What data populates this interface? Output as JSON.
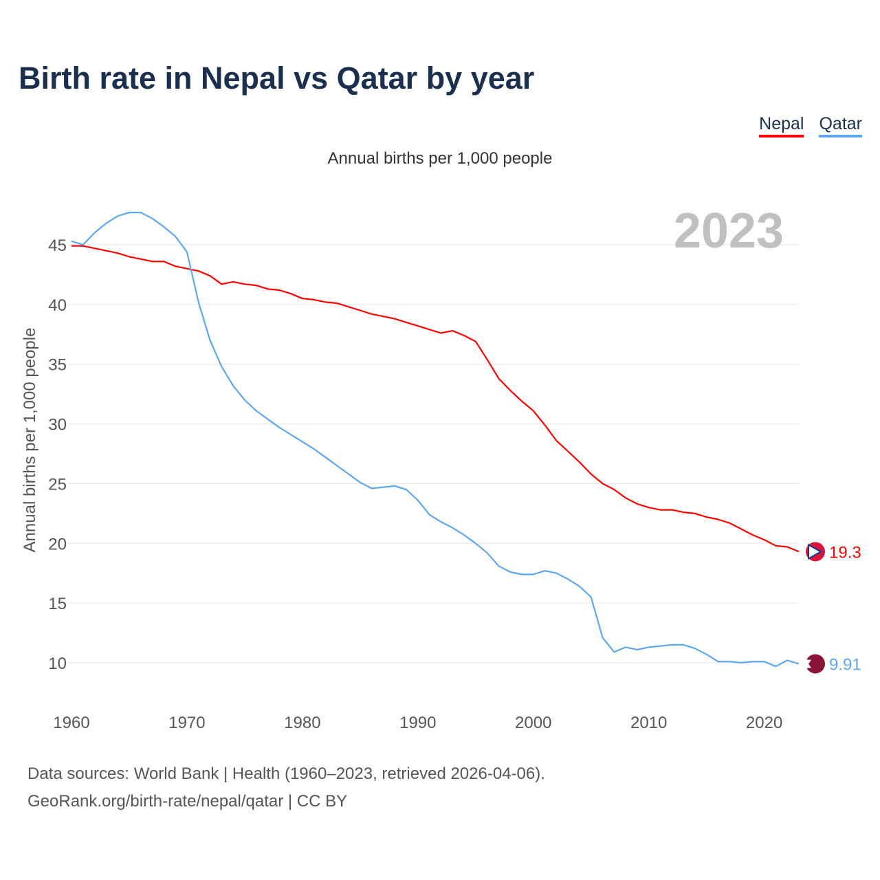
{
  "title": "Birth rate in Nepal vs Qatar by year",
  "subtitle": "Annual births per 1,000 people",
  "legend": [
    "Nepal",
    "Qatar"
  ],
  "year_label": "2023",
  "footer": {
    "line1": "Data sources: World Bank | Health (1960–2023, retrieved 2026-04-06).",
    "line2": "GeoRank.org/birth-rate/nepal/qatar | CC BY"
  },
  "chart_data": {
    "type": "line",
    "title": "Birth rate in Nepal vs Qatar by year",
    "xlabel": "",
    "ylabel": "Annual births per 1,000 people",
    "xlim": [
      1960,
      2023
    ],
    "ylim": [
      7,
      48
    ],
    "xticks": [
      1960,
      1970,
      1980,
      1990,
      2000,
      2010,
      2020
    ],
    "yticks": [
      10,
      15,
      20,
      25,
      30,
      35,
      40,
      45
    ],
    "grid": true,
    "legend_position": "top-right",
    "x_start": 1960,
    "series": [
      {
        "name": "Nepal",
        "color": "#ff0000",
        "end_label": "19.3",
        "values": [
          44.9,
          44.9,
          44.7,
          44.5,
          44.3,
          44.0,
          43.8,
          43.6,
          43.6,
          43.2,
          43.0,
          42.8,
          42.4,
          41.7,
          41.9,
          41.7,
          41.6,
          41.3,
          41.2,
          40.9,
          40.5,
          40.4,
          40.2,
          40.1,
          39.8,
          39.5,
          39.2,
          39.0,
          38.8,
          38.5,
          38.2,
          37.9,
          37.6,
          37.8,
          37.4,
          36.9,
          35.4,
          33.8,
          32.8,
          31.9,
          31.1,
          29.9,
          28.6,
          27.7,
          26.8,
          25.8,
          25.0,
          24.5,
          23.8,
          23.3,
          23.0,
          22.8,
          22.8,
          22.6,
          22.5,
          22.2,
          22.0,
          21.7,
          21.2,
          20.7,
          20.3,
          19.8,
          19.7,
          19.3
        ]
      },
      {
        "name": "Qatar",
        "color": "#5ea7ec",
        "end_label": "9.91",
        "values": [
          45.3,
          45.0,
          46.0,
          46.8,
          47.4,
          47.7,
          47.7,
          47.2,
          46.5,
          45.7,
          44.4,
          40.2,
          37.0,
          34.8,
          33.2,
          32.0,
          31.1,
          30.4,
          29.7,
          29.1,
          28.5,
          27.9,
          27.2,
          26.5,
          25.8,
          25.1,
          24.6,
          24.7,
          24.8,
          24.5,
          23.6,
          22.4,
          21.8,
          21.3,
          20.7,
          20.0,
          19.2,
          18.1,
          17.6,
          17.4,
          17.4,
          17.7,
          17.5,
          17.0,
          16.4,
          15.5,
          12.1,
          10.9,
          11.3,
          11.1,
          11.3,
          11.4,
          11.5,
          11.5,
          11.2,
          10.7,
          10.1,
          10.1,
          10.0,
          10.1,
          10.1,
          9.7,
          10.2,
          9.91
        ]
      }
    ]
  }
}
